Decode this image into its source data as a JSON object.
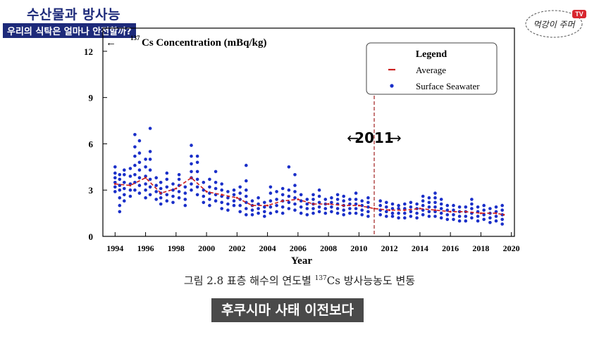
{
  "header": {
    "title": "수산물과 방사능",
    "subtitle": "우리의 식탁은 얼마나 안전할까?"
  },
  "logo": {
    "script_text": "먹강이 주머",
    "badge": "TV"
  },
  "caption": {
    "prefix": "그림 2.8 표층 해수의 연도별 ",
    "sup": "137",
    "suffix": "Cs 방사능농도 변동"
  },
  "subtitle_box": "후쿠시마 사태 이전보다",
  "colors": {
    "average": "#cc1f1f",
    "seawater": "#1a2fc9",
    "marker": "#a83030",
    "header_bg": "#1d2a7a"
  },
  "chart_data": {
    "type": "scatter",
    "title": "",
    "ylabel_arrow": "←",
    "ylabel_sup": "137",
    "ylabel": "Cs Concentration (mBq/kg)",
    "xlabel": "Year",
    "xlim": [
      1993.2,
      2020.2
    ],
    "ylim": [
      0,
      13.5
    ],
    "xticks": [
      1994,
      1996,
      1998,
      2000,
      2002,
      2004,
      2006,
      2008,
      2010,
      2012,
      2014,
      2016,
      2018,
      2020
    ],
    "yticks": [
      0,
      3,
      6,
      9,
      12
    ],
    "grid": false,
    "legend": {
      "title": "Legend",
      "placement": "top-right",
      "items": [
        "Average",
        "Surface Seawater"
      ]
    },
    "marker": {
      "year": 2011,
      "label": "2011",
      "left_arrow": "←",
      "right_arrow": "→"
    },
    "series": [
      {
        "name": "Average",
        "style": "dashed-line",
        "x": [
          1994,
          1995,
          1996,
          1997,
          1998,
          1999,
          2000,
          2001,
          2002,
          2003,
          2004,
          2005,
          2006,
          2007,
          2008,
          2009,
          2010,
          2011,
          2012,
          2013,
          2014,
          2015,
          2016,
          2017,
          2018,
          2019,
          2019.5
        ],
        "values": [
          3.4,
          3.3,
          3.8,
          2.8,
          3.1,
          3.8,
          2.9,
          2.7,
          2.5,
          2.0,
          2.0,
          2.3,
          2.4,
          2.1,
          2.1,
          2.0,
          2.0,
          1.8,
          1.7,
          1.7,
          1.8,
          1.7,
          1.6,
          1.6,
          1.5,
          1.5,
          1.4
        ]
      },
      {
        "name": "Surface Seawater",
        "style": "points",
        "groups": [
          {
            "x": 1994.0,
            "y": [
              2.9,
              3.2,
              3.5,
              3.8,
              4.1,
              4.5
            ]
          },
          {
            "x": 1994.3,
            "y": [
              1.6,
              2.0,
              2.5,
              3.0,
              3.3,
              3.7,
              4.0
            ]
          },
          {
            "x": 1994.6,
            "y": [
              2.3,
              2.7,
              3.1,
              3.5,
              4.0,
              4.3
            ]
          },
          {
            "x": 1995.0,
            "y": [
              2.6,
              3.0,
              3.4,
              3.9,
              4.4
            ]
          },
          {
            "x": 1995.3,
            "y": [
              3.0,
              3.5,
              4.0,
              4.6,
              5.2,
              5.8,
              6.6
            ]
          },
          {
            "x": 1995.6,
            "y": [
              2.8,
              3.3,
              3.8,
              4.3,
              4.8,
              5.4,
              6.2
            ]
          },
          {
            "x": 1996.0,
            "y": [
              2.5,
              3.0,
              3.4,
              3.9,
              4.5,
              5.0
            ]
          },
          {
            "x": 1996.3,
            "y": [
              2.7,
              3.2,
              3.7,
              4.3,
              5.0,
              5.5,
              7.0
            ]
          },
          {
            "x": 1996.7,
            "y": [
              2.4,
              2.9,
              3.3,
              3.8
            ]
          },
          {
            "x": 1997.0,
            "y": [
              2.1,
              2.5,
              2.8,
              3.1,
              3.5
            ]
          },
          {
            "x": 1997.4,
            "y": [
              2.3,
              2.7,
              3.2,
              3.7,
              4.1
            ]
          },
          {
            "x": 1997.8,
            "y": [
              2.2,
              2.6,
              3.0,
              3.4
            ]
          },
          {
            "x": 1998.2,
            "y": [
              2.5,
              2.9,
              3.3,
              3.7,
              4.0
            ]
          },
          {
            "x": 1998.6,
            "y": [
              2.0,
              2.4,
              2.8,
              3.2
            ]
          },
          {
            "x": 1999.0,
            "y": [
              3.0,
              3.4,
              3.8,
              4.2,
              4.7,
              5.2,
              5.9
            ]
          },
          {
            "x": 1999.4,
            "y": [
              2.7,
              3.2,
              3.7,
              4.2,
              4.8,
              5.2
            ]
          },
          {
            "x": 1999.8,
            "y": [
              2.2,
              2.6,
              3.0,
              3.5
            ]
          },
          {
            "x": 2000.2,
            "y": [
              2.0,
              2.4,
              2.8,
              3.2,
              3.7
            ]
          },
          {
            "x": 2000.6,
            "y": [
              2.3,
              2.7,
              3.1,
              3.5,
              4.2
            ]
          },
          {
            "x": 2001.0,
            "y": [
              1.8,
              2.2,
              2.6,
              3.0,
              3.4
            ]
          },
          {
            "x": 2001.4,
            "y": [
              1.7,
              2.1,
              2.5,
              2.9
            ]
          },
          {
            "x": 2001.8,
            "y": [
              2.0,
              2.3,
              2.7,
              3.0
            ]
          },
          {
            "x": 2002.2,
            "y": [
              1.6,
              2.0,
              2.4,
              2.8,
              3.2
            ]
          },
          {
            "x": 2002.6,
            "y": [
              1.4,
              1.8,
              2.2,
              2.6,
              3.0,
              3.6,
              4.6
            ]
          },
          {
            "x": 2003.0,
            "y": [
              1.4,
              1.7,
              2.0,
              2.3
            ]
          },
          {
            "x": 2003.4,
            "y": [
              1.5,
              1.8,
              2.1,
              2.5
            ]
          },
          {
            "x": 2003.8,
            "y": [
              1.3,
              1.6,
              1.9,
              2.2
            ]
          },
          {
            "x": 2004.2,
            "y": [
              1.5,
              1.9,
              2.3,
              2.8,
              3.2
            ]
          },
          {
            "x": 2004.6,
            "y": [
              1.6,
              2.0,
              2.4,
              2.9
            ]
          },
          {
            "x": 2005.0,
            "y": [
              1.5,
              1.9,
              2.3,
              2.7,
              3.1
            ]
          },
          {
            "x": 2005.4,
            "y": [
              1.8,
              2.2,
              2.6,
              3.0,
              4.5
            ]
          },
          {
            "x": 2005.8,
            "y": [
              1.7,
              2.1,
              2.5,
              2.9,
              3.3,
              4.0
            ]
          },
          {
            "x": 2006.2,
            "y": [
              1.5,
              1.9,
              2.3,
              2.7
            ]
          },
          {
            "x": 2006.6,
            "y": [
              1.4,
              1.8,
              2.1,
              2.4
            ]
          },
          {
            "x": 2007.0,
            "y": [
              1.5,
              1.8,
              2.1,
              2.4,
              2.7
            ]
          },
          {
            "x": 2007.4,
            "y": [
              1.6,
              1.9,
              2.2,
              2.6,
              3.0
            ]
          },
          {
            "x": 2007.8,
            "y": [
              1.5,
              1.8,
              2.1,
              2.4
            ]
          },
          {
            "x": 2008.2,
            "y": [
              1.6,
              1.9,
              2.2,
              2.5
            ]
          },
          {
            "x": 2008.6,
            "y": [
              1.5,
              1.8,
              2.1,
              2.4,
              2.7
            ]
          },
          {
            "x": 2009.0,
            "y": [
              1.4,
              1.7,
              2.0,
              2.3,
              2.6
            ]
          },
          {
            "x": 2009.4,
            "y": [
              1.5,
              1.8,
              2.1,
              2.4
            ]
          },
          {
            "x": 2009.8,
            "y": [
              1.5,
              1.8,
              2.1,
              2.4,
              2.8
            ]
          },
          {
            "x": 2010.2,
            "y": [
              1.4,
              1.7,
              2.0,
              2.3
            ]
          },
          {
            "x": 2010.6,
            "y": [
              1.3,
              1.6,
              1.9,
              2.2,
              2.5
            ]
          },
          {
            "x": 2011.4,
            "y": [
              1.4,
              1.7,
              2.0,
              2.3
            ]
          },
          {
            "x": 2011.8,
            "y": [
              1.3,
              1.6,
              1.9,
              2.2
            ]
          },
          {
            "x": 2012.2,
            "y": [
              1.3,
              1.5,
              1.8,
              2.1
            ]
          },
          {
            "x": 2012.6,
            "y": [
              1.2,
              1.5,
              1.8,
              2.0
            ]
          },
          {
            "x": 2013.0,
            "y": [
              1.2,
              1.5,
              1.8,
              2.1
            ]
          },
          {
            "x": 2013.4,
            "y": [
              1.3,
              1.6,
              1.9,
              2.2
            ]
          },
          {
            "x": 2013.8,
            "y": [
              1.2,
              1.5,
              1.8,
              2.1
            ]
          },
          {
            "x": 2014.2,
            "y": [
              1.4,
              1.7,
              2.0,
              2.3,
              2.6
            ]
          },
          {
            "x": 2014.6,
            "y": [
              1.3,
              1.6,
              1.9,
              2.2,
              2.5
            ]
          },
          {
            "x": 2015.0,
            "y": [
              1.3,
              1.6,
              1.9,
              2.2,
              2.5,
              2.8
            ]
          },
          {
            "x": 2015.4,
            "y": [
              1.2,
              1.5,
              1.8,
              2.1,
              2.4
            ]
          },
          {
            "x": 2015.8,
            "y": [
              1.1,
              1.4,
              1.7,
              2.0
            ]
          },
          {
            "x": 2016.2,
            "y": [
              1.1,
              1.4,
              1.7,
              2.0
            ]
          },
          {
            "x": 2016.6,
            "y": [
              1.0,
              1.3,
              1.6,
              1.9
            ]
          },
          {
            "x": 2017.0,
            "y": [
              1.0,
              1.3,
              1.6,
              1.9
            ]
          },
          {
            "x": 2017.4,
            "y": [
              1.2,
              1.5,
              1.8,
              2.1,
              2.4
            ]
          },
          {
            "x": 2017.8,
            "y": [
              1.0,
              1.3,
              1.6,
              1.9
            ]
          },
          {
            "x": 2018.2,
            "y": [
              1.1,
              1.4,
              1.7,
              2.0
            ]
          },
          {
            "x": 2018.6,
            "y": [
              0.9,
              1.2,
              1.5,
              1.8
            ]
          },
          {
            "x": 2019.0,
            "y": [
              1.0,
              1.3,
              1.6,
              1.9
            ]
          },
          {
            "x": 2019.4,
            "y": [
              0.8,
              1.1,
              1.4,
              1.7,
              2.0
            ]
          }
        ]
      }
    ]
  }
}
